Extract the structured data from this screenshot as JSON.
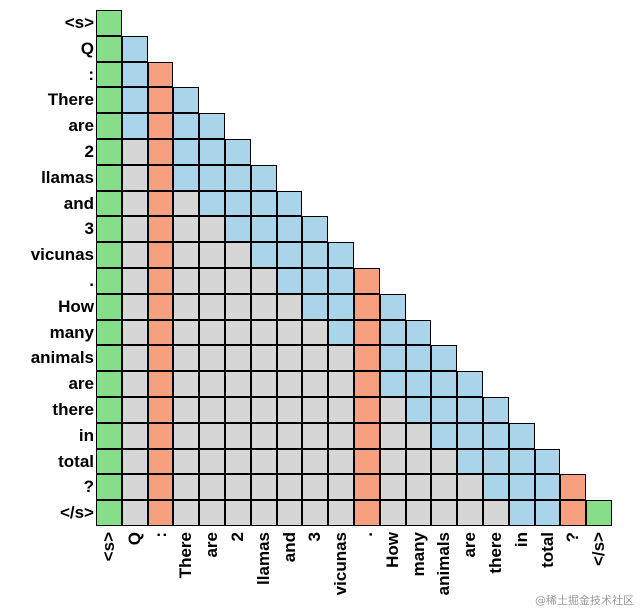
{
  "tokens": [
    "<s>",
    "Q",
    ":",
    "There",
    "are",
    "2",
    "llamas",
    "and",
    "3",
    "vicunas",
    ".",
    "How",
    "many",
    "animals",
    "are",
    "there",
    "in",
    "total",
    "?",
    "</s>"
  ],
  "sink_indices": [
    0,
    19
  ],
  "anchor_indices": [
    2,
    10,
    18
  ],
  "window_size": 4,
  "colors": {
    "sink": "#86de8a",
    "anchor": "#f7a07f",
    "window": "#a9d4ea",
    "masked": "#d6d6d6"
  },
  "watermark": "@稀土掘金技术社区"
}
